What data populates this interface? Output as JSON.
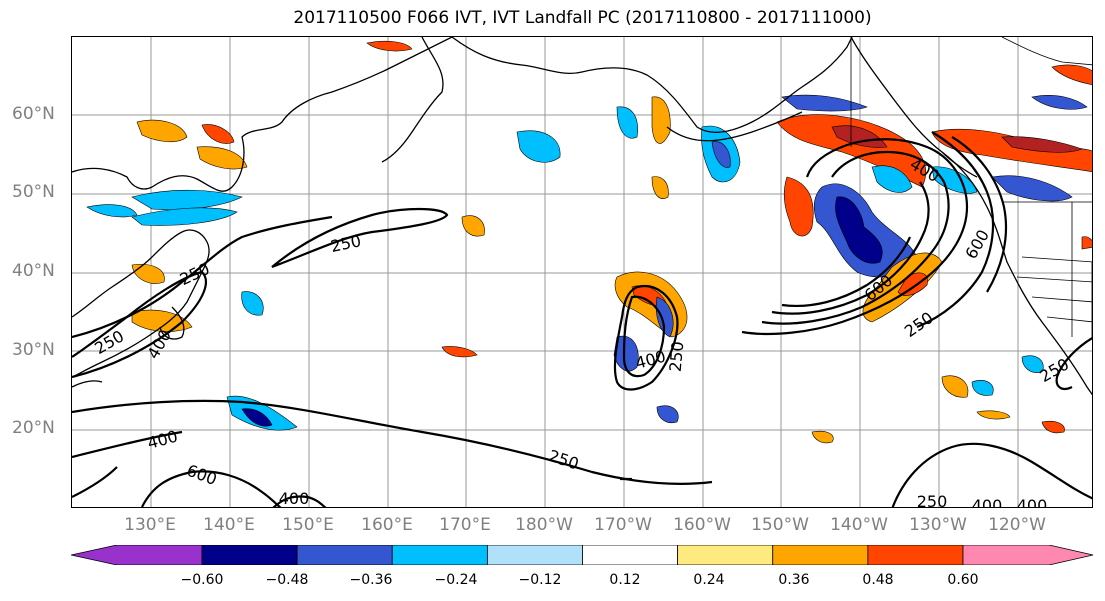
{
  "title": "2017110500 F066 IVT, IVT Landfall PC (2017110800 - 2017111000)",
  "lat_labels": [
    "60°N",
    "50°N",
    "40°N",
    "30°N",
    "20°N"
  ],
  "lon_labels": [
    "130°E",
    "140°E",
    "150°E",
    "160°E",
    "170°E",
    "180°W",
    "170°W",
    "160°W",
    "150°W",
    "140°W",
    "130°W",
    "120°W"
  ],
  "contour_labels": [
    "250",
    "250",
    "400",
    "250",
    "400",
    "600",
    "250",
    "250",
    "400",
    "600",
    "250",
    "400",
    "600",
    "400",
    "250",
    "400",
    "250",
    "400"
  ],
  "colorbar": {
    "ticks": [
      "−0.60",
      "−0.48",
      "−0.36",
      "−0.24",
      "−0.12",
      "0.12",
      "0.24",
      "0.36",
      "0.48",
      "0.60"
    ],
    "colors": [
      "#9932cc",
      "#00008b",
      "#3457d1",
      "#00bfff",
      "#b0e0fa",
      "#ffffff",
      "#ffea80",
      "#ffa500",
      "#ff4500",
      "#b22222",
      "#ff88b0"
    ]
  }
}
